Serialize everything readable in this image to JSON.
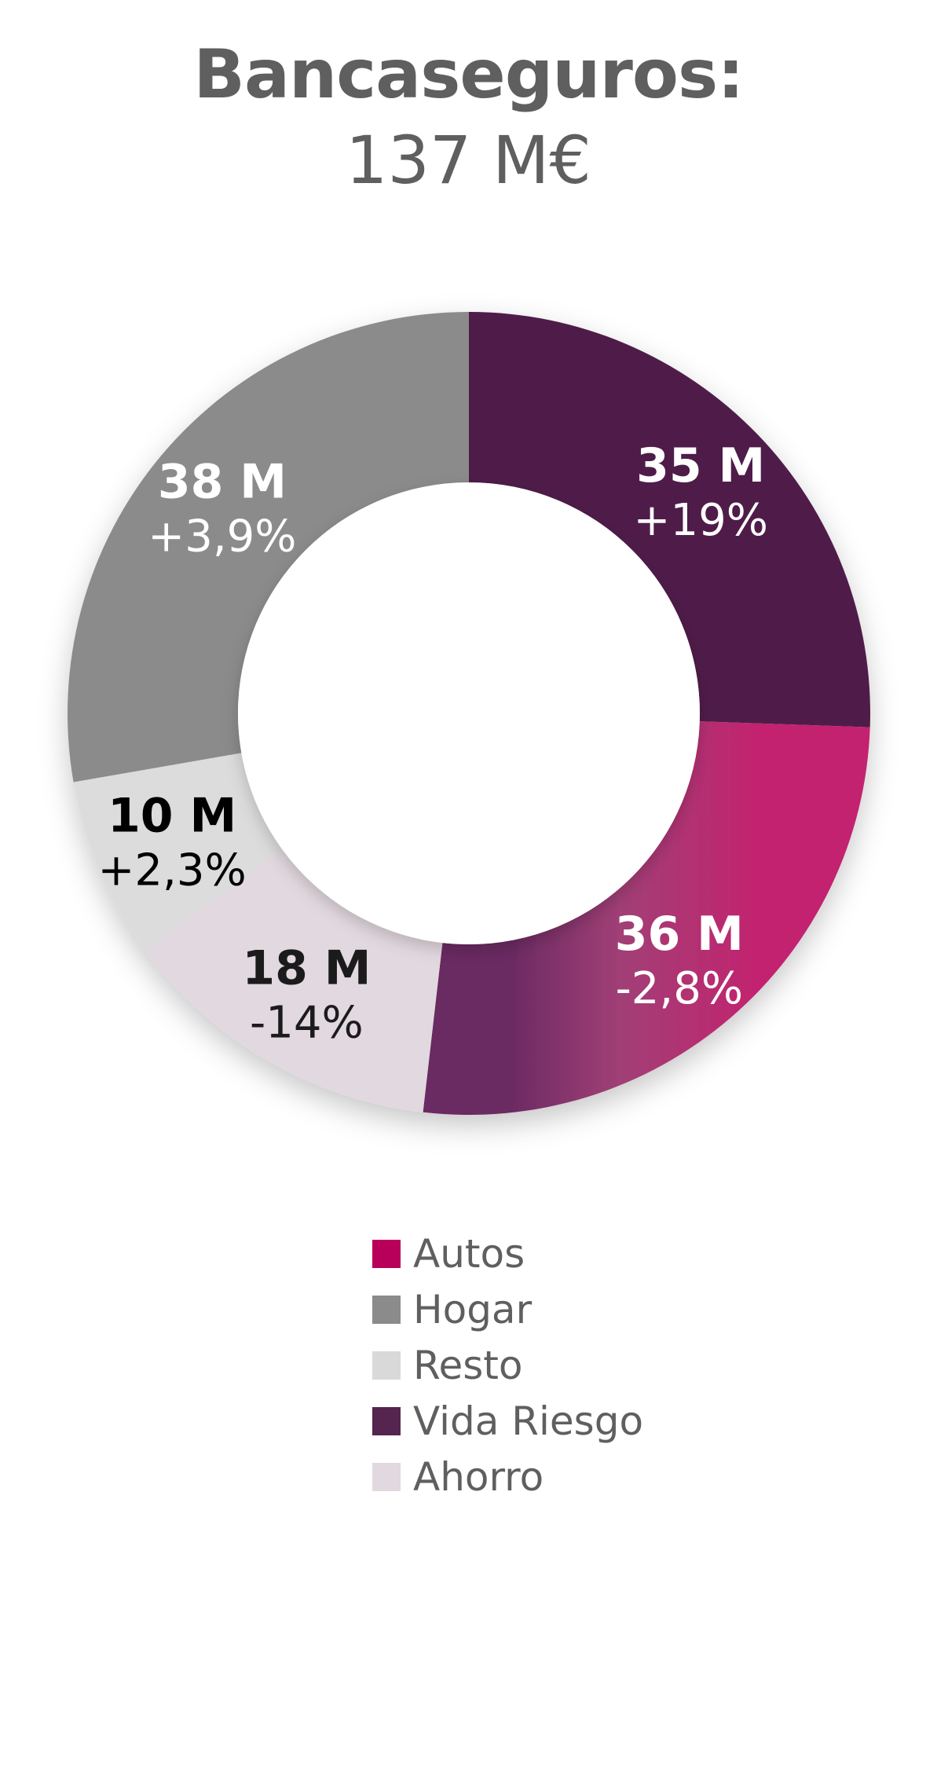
{
  "header": {
    "title": "Bancaseguros:",
    "subtitle": "137 M€"
  },
  "chart_data": {
    "type": "pie",
    "title": "Bancaseguros:",
    "subtitle": "137 M€",
    "total": 137,
    "unit": "M€",
    "donut": true,
    "order": "clockwise from top",
    "slices": [
      {
        "name": "Vida Riesgo",
        "value": 35,
        "value_label": "35 M",
        "change": 19,
        "change_label": "+19%",
        "color": "#4f1a48",
        "text_color": "#ffffff"
      },
      {
        "name": "Autos",
        "value": 36,
        "value_label": "36 M",
        "change": -2.8,
        "change_label": "-2,8%",
        "color": "#c2246f",
        "text_color": "#ffffff"
      },
      {
        "name": "Ahorro",
        "value": 18,
        "value_label": "18 M",
        "change": -14,
        "change_label": "-14%",
        "color": "#e2d8df",
        "text_color": "#1b1b1b"
      },
      {
        "name": "Resto",
        "value": 10,
        "value_label": "10 M",
        "change": 2.3,
        "change_label": "+2,3%",
        "color": "#dcdcdc",
        "text_color": "#000000"
      },
      {
        "name": "Hogar",
        "value": 38,
        "value_label": "38 M",
        "change": 3.9,
        "change_label": "+3,9%",
        "color": "#8b8b8b",
        "text_color": "#ffffff"
      }
    ],
    "legend": [
      {
        "label": "Autos",
        "color": "#b8005a"
      },
      {
        "label": "Hogar",
        "color": "#8b8b8b"
      },
      {
        "label": "Resto",
        "color": "#d9d9d9"
      },
      {
        "label": "Vida Riesgo",
        "color": "#55244f"
      },
      {
        "label": "Ahorro",
        "color": "#e2d8df"
      }
    ],
    "legend_position": "bottom"
  }
}
